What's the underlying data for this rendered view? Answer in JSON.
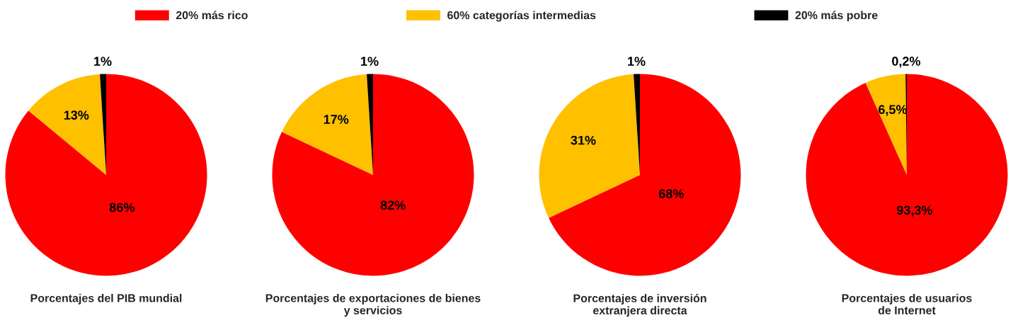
{
  "chart_data": [
    {
      "type": "pie",
      "title": "Porcentajes del PIB mundial",
      "categories": [
        "20% más rico",
        "60% categorías intermedias",
        "20% más pobre"
      ],
      "values": [
        86,
        13,
        1
      ],
      "value_labels": [
        "86%",
        "13%",
        "1%"
      ],
      "colors": [
        "#ff0000",
        "#ffc000",
        "#000000"
      ],
      "legend": "top"
    },
    {
      "type": "pie",
      "title": "Porcentajes de exportaciones de bienes\ny servicios",
      "categories": [
        null,
        null,
        null
      ],
      "values": [
        82,
        17,
        1
      ],
      "value_labels": [
        "82%",
        "17%",
        "1%"
      ],
      "colors": [
        "#ff0000",
        "#ffc000",
        "#000000"
      ]
    },
    {
      "type": "pie",
      "title": "Porcentajes de inversión\nextranjera directa",
      "categories": [
        null,
        null,
        null
      ],
      "values": [
        68,
        31,
        1
      ],
      "value_labels": [
        "68%",
        "31%",
        "1%"
      ],
      "colors": [
        "#ff0000",
        "#ffc000",
        "#000000"
      ]
    },
    {
      "type": "pie",
      "title": "Porcentajes de usuarios\nde Internet",
      "categories": [
        null,
        null,
        null
      ],
      "values": [
        93.3,
        6.5,
        0.2
      ],
      "value_labels": [
        "93,3%",
        "6,5%",
        "0,2%"
      ],
      "colors": [
        "#ff0000",
        "#ffc000",
        "#000000"
      ]
    }
  ]
}
